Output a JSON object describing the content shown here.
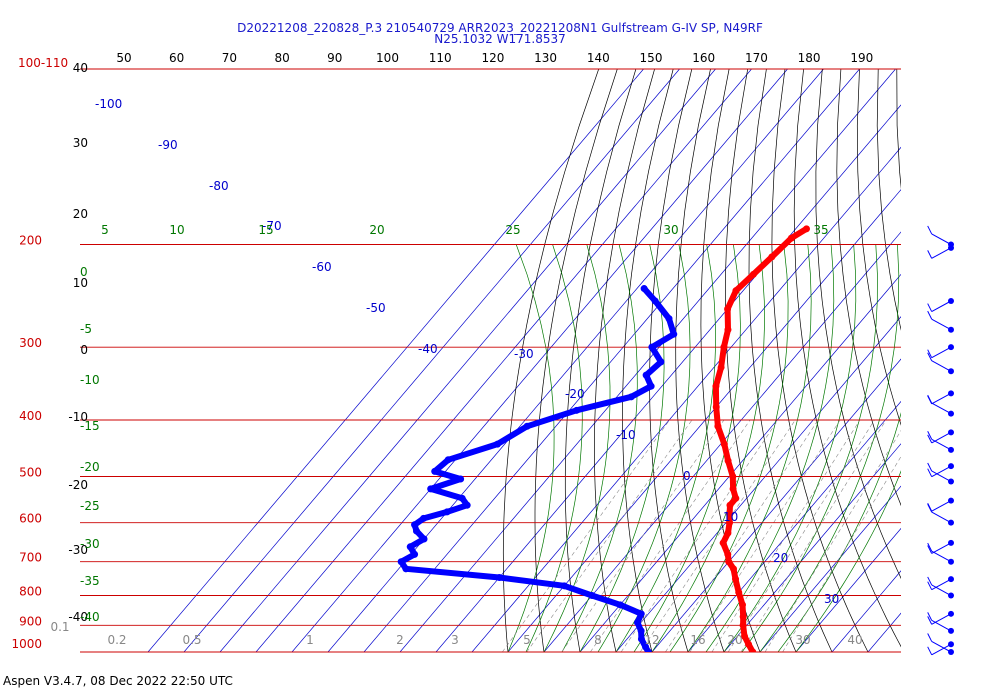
{
  "title_line1": "D20221208_220828_P.3 210540729 ARR2023_20221208N1 Gulfstream G-IV SP, N49RF",
  "title_line2": "N25.1032 W171.8537",
  "footer": "Aspen V3.4.7, 08 Dec 2022  22:50 UTC",
  "colors": {
    "temperature": "#ff0000",
    "dewpoint": "#0000ff",
    "isobar": "#cc0000",
    "isotherm": "#0000cc",
    "dry_adiabat": "#000000",
    "moist_adiabat": "#007700",
    "mixing_ratio": "#888888",
    "wind": "#0000ff"
  },
  "chart_data": {
    "type": "skew-T log-P",
    "pressure_axis": {
      "label_100": "100-110",
      "ticks": [
        "200",
        "300",
        "400",
        "500",
        "600",
        "700",
        "800",
        "900",
        "1000"
      ]
    },
    "top_scale": [
      "50",
      "60",
      "70",
      "80",
      "90",
      "100",
      "110",
      "120",
      "130",
      "140",
      "150",
      "160",
      "170",
      "180",
      "190"
    ],
    "left_scale_black": [
      "40",
      "30",
      "20",
      "10",
      "0",
      "-10",
      "-20",
      "-30",
      "-40"
    ],
    "isotherm_labels": [
      "-100",
      "-90",
      "-80",
      "-70",
      "-60",
      "-50",
      "-40",
      "-30",
      "-20",
      "-10",
      "0",
      "10",
      "20",
      "30"
    ],
    "theta_e_top": [
      "5",
      "10",
      "15",
      "20",
      "25",
      "30",
      "35"
    ],
    "theta_e_left": [
      "0",
      "-5",
      "-10",
      "-15",
      "-20",
      "-25",
      "-30",
      "-35",
      "-40"
    ],
    "mixing_ratio_labels": [
      "0.1",
      "0.2",
      "0.5",
      "1",
      "2",
      "3",
      "5",
      "8",
      "12",
      "16",
      "20",
      "30",
      "40"
    ],
    "series": [
      {
        "key": "temperature",
        "p": [
          188,
          195,
          210,
          225,
          240,
          258,
          280,
          300,
          325,
          350,
          380,
          410,
          440,
          470,
          500,
          525,
          545,
          560,
          580,
          600,
          625,
          650,
          680,
          700,
          720,
          750,
          790,
          830,
          870,
          900,
          940,
          970,
          1000
        ],
        "t": [
          -57,
          -59,
          -60,
          -61,
          -62,
          -60,
          -55,
          -52,
          -48,
          -45,
          -40,
          -35,
          -29,
          -24,
          -19,
          -16,
          -13,
          -13,
          -11,
          -9,
          -7,
          -6,
          -2,
          0,
          3,
          6,
          10,
          14,
          17,
          19,
          22,
          25,
          28
        ]
      },
      {
        "key": "dewpoint",
        "p": [
          238,
          250,
          268,
          285,
          300,
          318,
          335,
          350,
          365,
          385,
          410,
          440,
          468,
          490,
          505,
          525,
          545,
          560,
          575,
          590,
          605,
          620,
          640,
          660,
          680,
          700,
          720,
          745,
          770,
          800,
          830,
          860,
          890,
          920,
          950,
          980,
          1000
        ],
        "t": [
          -88,
          -82,
          -74,
          -69,
          -72,
          -66,
          -67,
          -63,
          -66,
          -78,
          -88,
          -92,
          -102,
          -103,
          -94,
          -100,
          -89,
          -86,
          -90,
          -95,
          -96,
          -94,
          -90,
          -92,
          -89,
          -91,
          -88,
          -60,
          -40,
          -30,
          -20,
          -12,
          -11,
          -8,
          -6,
          -3,
          -1
        ]
      }
    ],
    "wind_profile_pressures": [
      180,
      200,
      250,
      280,
      300,
      330,
      360,
      390,
      420,
      450,
      480,
      510,
      550,
      600,
      650,
      700,
      750,
      800,
      860,
      920,
      970,
      1000
    ]
  }
}
